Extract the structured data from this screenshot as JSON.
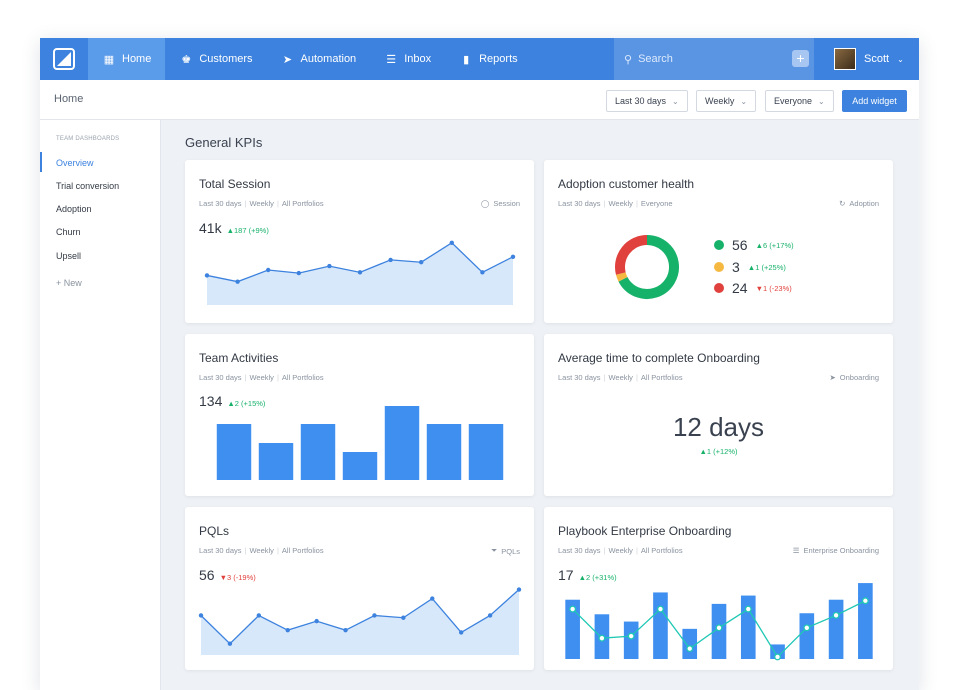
{
  "nav": {
    "items": [
      {
        "label": "Home",
        "icon": "grid-icon"
      },
      {
        "label": "Customers",
        "icon": "users-icon"
      },
      {
        "label": "Automation",
        "icon": "send-icon"
      },
      {
        "label": "Inbox",
        "icon": "inbox-icon"
      },
      {
        "label": "Reports",
        "icon": "bar-chart-icon"
      }
    ],
    "search_placeholder": "Search",
    "user": "Scott"
  },
  "subheader": {
    "breadcrumb": "Home",
    "filters": [
      "Last 30 days",
      "Weekly",
      "Everyone"
    ],
    "add_widget": "Add widget"
  },
  "sidebar": {
    "heading": "TEAM DASHBOARDS",
    "items": [
      "Overview",
      "Trial conversion",
      "Adoption",
      "Churn",
      "Upsell"
    ],
    "new_label": "+ New"
  },
  "section_title": "General KPIs",
  "colors": {
    "accent": "#3c82de",
    "up": "#17b26a",
    "down": "#e0413d",
    "warn": "#f5b942",
    "bar": "#3f8ff0",
    "area": "#d8e8fb",
    "teal": "#1fc8b4"
  },
  "cards": {
    "total_session": {
      "title": "Total Session",
      "meta": [
        "Last 30 days",
        "Weekly",
        "All Portfolios"
      ],
      "tag": "Session",
      "value": "41k",
      "delta": "▲187 (+9%)"
    },
    "adoption": {
      "title": "Adoption customer health",
      "meta": [
        "Last 30 days",
        "Weekly",
        "Everyone"
      ],
      "tag": "Adoption",
      "legend": [
        {
          "value": "56",
          "delta": "▲6 (+17%)",
          "dir": "up",
          "color": "#17b26a"
        },
        {
          "value": "3",
          "delta": "▲1 (+25%)",
          "dir": "up",
          "color": "#f5b942"
        },
        {
          "value": "24",
          "delta": "▼1 (-23%)",
          "dir": "down",
          "color": "#e0413d"
        }
      ]
    },
    "team_activities": {
      "title": "Team Activities",
      "meta": [
        "Last 30 days",
        "Weekly",
        "All Portfolios"
      ],
      "value": "134",
      "delta": "▲2 (+15%)"
    },
    "onboarding": {
      "title": "Average time to complete Onboarding",
      "meta": [
        "Last 30 days",
        "Weekly",
        "All Portfolios"
      ],
      "tag": "Onboarding",
      "value": "12 days",
      "delta": "▲1 (+12%)"
    },
    "pqls": {
      "title": "PQLs",
      "meta": [
        "Last 30 days",
        "Weekly",
        "All Portfolios"
      ],
      "tag": "PQLs",
      "value": "56",
      "delta": "▼3 (-19%)"
    },
    "playbook": {
      "title": "Playbook Enterprise Onboarding",
      "meta": [
        "Last 30 days",
        "Weekly",
        "All Portfolios"
      ],
      "tag": "Enterprise Onboarding",
      "value": "17",
      "delta": "▲2 (+31%)"
    }
  },
  "chart_data": [
    {
      "type": "area",
      "id": "total_session",
      "values": [
        38,
        30,
        45,
        41,
        50,
        42,
        58,
        55,
        80,
        42,
        62
      ]
    },
    {
      "type": "pie",
      "id": "adoption",
      "values": [
        56,
        3,
        24
      ],
      "labels": [
        "56",
        "3",
        "24"
      ]
    },
    {
      "type": "bar",
      "id": "team_activities",
      "values": [
        56,
        37,
        56,
        28,
        74,
        56,
        56
      ]
    },
    {
      "type": "area",
      "id": "pqls",
      "values": [
        35,
        10,
        35,
        22,
        30,
        22,
        35,
        33,
        50,
        20,
        35,
        58
      ]
    },
    {
      "type": "bar",
      "id": "playbook",
      "bars": [
        57,
        43,
        36,
        64,
        29,
        53,
        61,
        14,
        44,
        57,
        73
      ],
      "line": [
        48,
        20,
        22,
        48,
        10,
        30,
        48,
        2,
        30,
        42,
        56
      ]
    }
  ]
}
